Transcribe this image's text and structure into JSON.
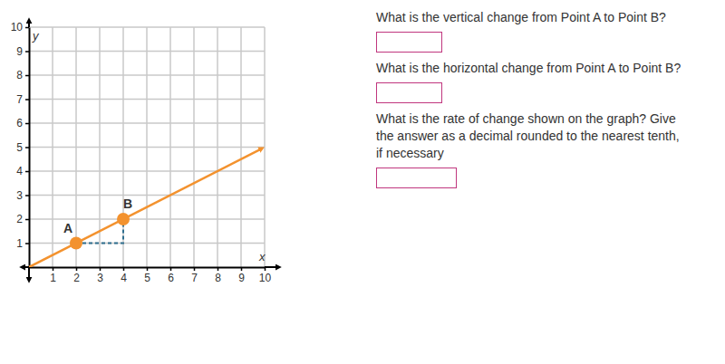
{
  "chart_data": {
    "type": "line",
    "x_label": "x",
    "y_label": "y",
    "xlim": [
      0,
      10
    ],
    "ylim": [
      0,
      10
    ],
    "xticks": [
      1,
      2,
      3,
      4,
      5,
      6,
      7,
      8,
      9,
      10
    ],
    "yticks": [
      1,
      2,
      3,
      4,
      5,
      6,
      7,
      8,
      9,
      10
    ],
    "grid": true,
    "series": [
      {
        "type": "line",
        "color": "#f3922e",
        "marker": "arrow",
        "x": [
          0,
          9.9
        ],
        "values": [
          0,
          4.95
        ]
      },
      {
        "type": "line",
        "color": "#2f6e8e",
        "line_style": "dashed",
        "x": [
          2,
          4,
          4
        ],
        "values": [
          1,
          1,
          2
        ]
      }
    ],
    "annotations": [
      {
        "label": "A",
        "x": 2,
        "y": 1,
        "color": "#f3922e"
      },
      {
        "label": "B",
        "x": 4,
        "y": 2,
        "color": "#f3922e"
      }
    ]
  },
  "questions": [
    [
      "What is the vertical change from Point A to Point B?"
    ],
    [
      "What is the horizontal change from Point A to Point B?"
    ],
    [
      "What is the rate of change shown on the graph? Give",
      "the answer as a decimal rounded to the nearest tenth,",
      "if necessary"
    ]
  ]
}
